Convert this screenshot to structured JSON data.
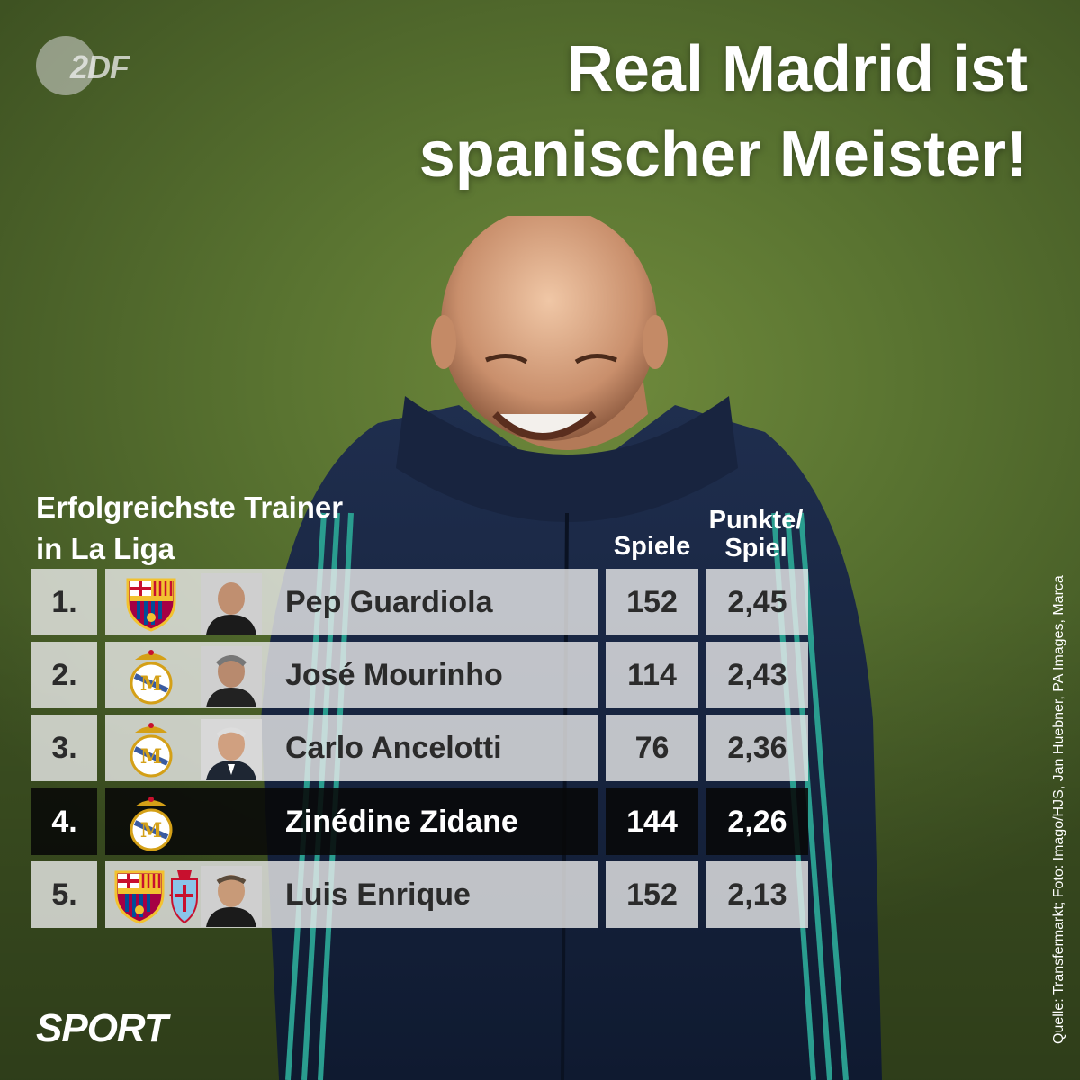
{
  "brand": {
    "logo_text": "2DF",
    "section_label": "SPORT"
  },
  "headline": {
    "line1": "Real Madrid ist",
    "line2": "spanischer Meister!"
  },
  "table": {
    "title_line1": "Erfolgreichste Trainer",
    "title_line2": "in La Liga",
    "col_games": "Spiele",
    "col_ppg_line1": "Punkte/",
    "col_ppg_line2": "Spiel",
    "rows": [
      {
        "rank": "1.",
        "name": "Pep Guardiola",
        "games": "152",
        "ppg": "2,45",
        "clubs": [
          "fc-barcelona"
        ]
      },
      {
        "rank": "2.",
        "name": "José Mourinho",
        "games": "114",
        "ppg": "2,43",
        "clubs": [
          "real-madrid"
        ]
      },
      {
        "rank": "3.",
        "name": "Carlo Ancelotti",
        "games": "76",
        "ppg": "2,36",
        "clubs": [
          "real-madrid"
        ]
      },
      {
        "rank": "4.",
        "name": "Zinédine Zidane",
        "games": "144",
        "ppg": "2,26",
        "clubs": [
          "real-madrid"
        ],
        "highlighted": true
      },
      {
        "rank": "5.",
        "name": "Luis Enrique",
        "games": "152",
        "ppg": "2,13",
        "clubs": [
          "fc-barcelona",
          "celta-vigo"
        ]
      }
    ]
  },
  "source": "Quelle: Transfermarkt; Foto: Imago/HJS, Jan Huebner, PA Images, Marca",
  "colors": {
    "highlight_row": "#080808",
    "row_bg": "#ebebeb",
    "text_dark": "#2b2b2b",
    "text_light": "#ffffff"
  }
}
